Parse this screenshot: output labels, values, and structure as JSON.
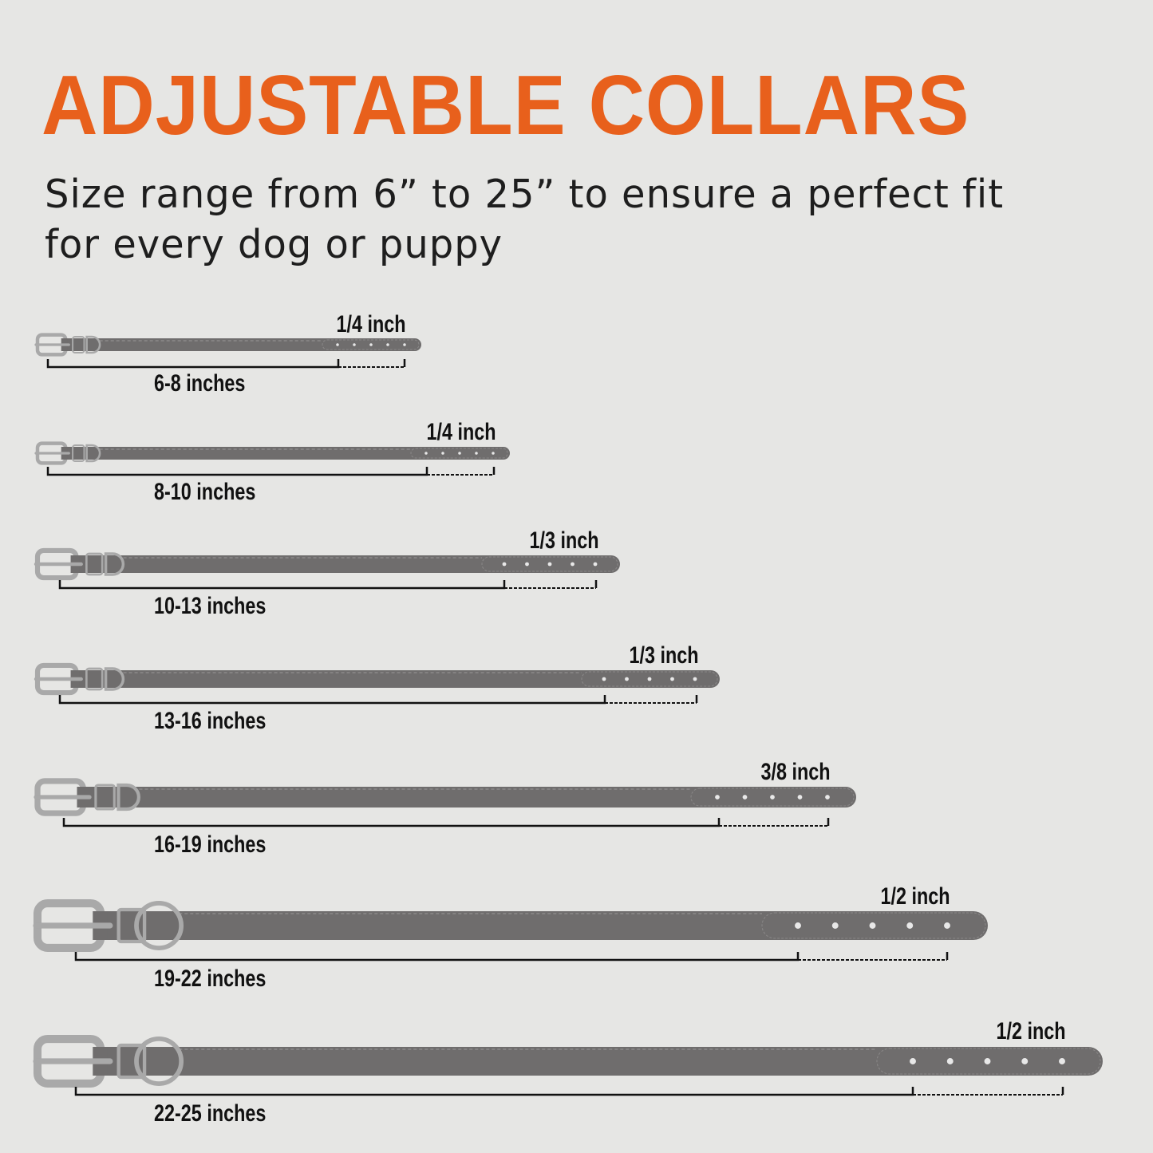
{
  "header": {
    "title": "ADJUSTABLE COLLARS",
    "subtitle_line1": "Size range from 6” to 25” to ensure a perfect fit",
    "subtitle_line2": "for every dog or puppy"
  },
  "colors": {
    "accent": "#e8601c",
    "strap": "#6f6d6d",
    "hardware": "#a9a9a9",
    "background": "#e6e6e4"
  },
  "collars": [
    {
      "size_label": "6-8 inches",
      "width_label": "1/4 inch"
    },
    {
      "size_label": "8-10 inches",
      "width_label": "1/4 inch"
    },
    {
      "size_label": "10-13 inches",
      "width_label": "1/3 inch"
    },
    {
      "size_label": "13-16 inches",
      "width_label": "1/3 inch"
    },
    {
      "size_label": "16-19 inches",
      "width_label": "3/8 inch"
    },
    {
      "size_label": "19-22 inches",
      "width_label": "1/2 inch"
    },
    {
      "size_label": "22-25 inches",
      "width_label": "1/2 inch"
    }
  ]
}
